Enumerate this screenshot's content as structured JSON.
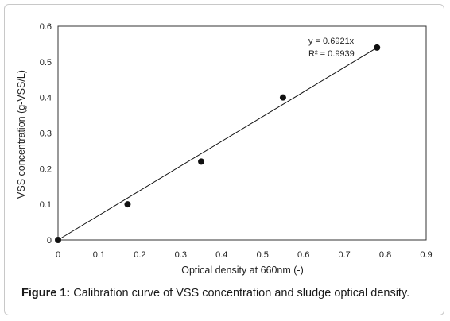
{
  "caption": {
    "label": "Figure 1:",
    "text": " Calibration curve of VSS concentration and sludge optical density."
  },
  "chart_data": {
    "type": "scatter",
    "title": "",
    "xlabel": "Optical density at 660nm (-)",
    "ylabel": "VSS concentration (g-VSS/L)",
    "xlim": [
      0,
      0.9
    ],
    "ylim": [
      0,
      0.6
    ],
    "xticks": [
      0,
      0.1,
      0.2,
      0.3,
      0.4,
      0.5,
      0.6,
      0.7,
      0.8,
      0.9
    ],
    "yticks": [
      0,
      0.1,
      0.2,
      0.3,
      0.4,
      0.5,
      0.6
    ],
    "grid": false,
    "legend": "none",
    "points": [
      {
        "x": 0,
        "y": 0
      },
      {
        "x": 0.17,
        "y": 0.1
      },
      {
        "x": 0.35,
        "y": 0.22
      },
      {
        "x": 0.55,
        "y": 0.4
      },
      {
        "x": 0.78,
        "y": 0.54
      }
    ],
    "trendline": {
      "slope": 0.6921,
      "intercept": 0,
      "x_range": [
        0,
        0.78
      ],
      "equation_label": "y = 0.6921x",
      "r2_label": "R² = 0.9939"
    },
    "colors": {
      "marker": "#111111",
      "line": "#111111",
      "axis": "#333333"
    }
  }
}
